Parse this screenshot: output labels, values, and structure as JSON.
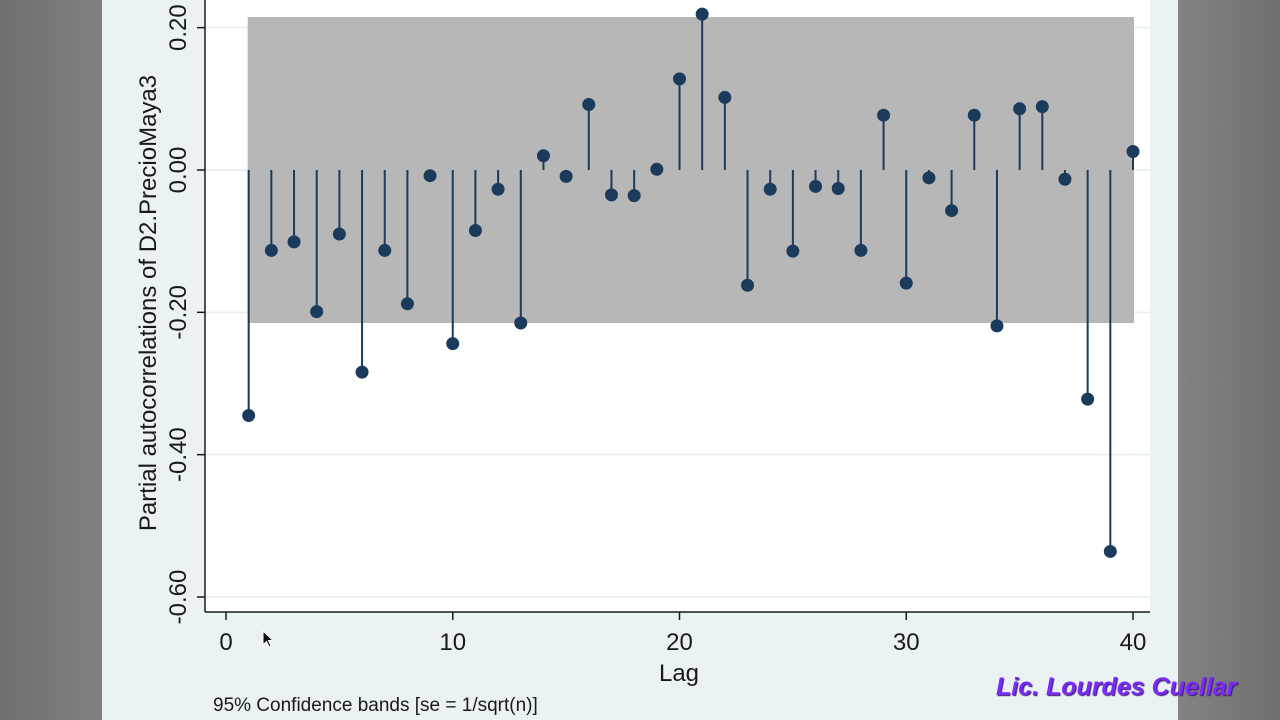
{
  "chart_data": {
    "type": "stem",
    "xlabel": "Lag",
    "ylabel": "Partial autocorrelations of D2.PrecioMaya3",
    "note": "95% Confidence bands [se = 1/sqrt(n)]",
    "xlim": [
      0,
      40
    ],
    "ylim": [
      -0.6,
      0.2
    ],
    "xticks": [
      0,
      10,
      20,
      30,
      40
    ],
    "yticks": [
      -0.6,
      -0.4,
      -0.2,
      0.0,
      0.2
    ],
    "ytick_labels": [
      "-0.60",
      "-0.40",
      "-0.20",
      "0.00",
      "0.20"
    ],
    "confidence_band": [
      -0.215,
      0.215
    ],
    "lags": [
      1,
      2,
      3,
      4,
      5,
      6,
      7,
      8,
      9,
      10,
      11,
      12,
      13,
      14,
      15,
      16,
      17,
      18,
      19,
      20,
      21,
      22,
      23,
      24,
      25,
      26,
      27,
      28,
      29,
      30,
      31,
      32,
      33,
      34,
      35,
      36,
      37,
      38,
      39,
      40
    ],
    "values": [
      -0.345,
      -0.113,
      -0.101,
      -0.199,
      -0.09,
      -0.284,
      -0.113,
      -0.188,
      -0.008,
      -0.244,
      -0.085,
      -0.027,
      -0.215,
      0.02,
      -0.009,
      0.092,
      -0.035,
      -0.036,
      0.001,
      0.128,
      0.219,
      0.102,
      -0.162,
      -0.027,
      -0.114,
      -0.023,
      -0.026,
      -0.113,
      0.077,
      -0.159,
      -0.011,
      -0.057,
      0.077,
      -0.219,
      0.086,
      0.089,
      -0.013,
      -0.322,
      -0.536,
      0.026
    ],
    "grid": true,
    "colors": {
      "marker": "#1b3b5c",
      "band": "#b7b7b7",
      "plot_bg": "#ffffff",
      "grid": "#e6eef0"
    }
  },
  "watermark": "Lic. Lourdes Cuellar"
}
